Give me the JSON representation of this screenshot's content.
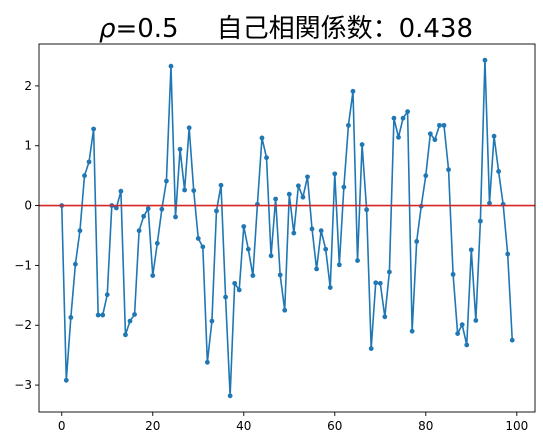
{
  "chart_data": {
    "type": "line",
    "title_parts": {
      "rho_symbol": "ρ",
      "rho_text": "=0.5",
      "autocorr_text": "自己相関係数：0.438"
    },
    "xlabel": "",
    "ylabel": "",
    "xlim": [
      -5,
      104
    ],
    "ylim": [
      -3.45,
      2.7
    ],
    "x_ticks": [
      0,
      20,
      40,
      60,
      80,
      100
    ],
    "y_ticks": [
      -3,
      -2,
      -1,
      0,
      1,
      2
    ],
    "grid": false,
    "series": [
      {
        "color": "#1f77b4",
        "marker": "circle",
        "x": [
          0,
          1,
          2,
          3,
          4,
          5,
          6,
          7,
          8,
          9,
          10,
          11,
          12,
          13,
          14,
          15,
          16,
          17,
          18,
          19,
          20,
          21,
          22,
          23,
          24,
          25,
          26,
          27,
          28,
          29,
          30,
          31,
          32,
          33,
          34,
          35,
          36,
          37,
          38,
          39,
          40,
          41,
          42,
          43,
          44,
          45,
          46,
          47,
          48,
          49,
          50,
          51,
          52,
          53,
          54,
          55,
          56,
          57,
          58,
          59,
          60,
          61,
          62,
          63,
          64,
          65,
          66,
          67,
          68,
          69,
          70,
          71,
          72,
          73,
          74,
          75,
          76,
          77,
          78,
          79,
          80,
          81,
          82,
          83,
          84,
          85,
          86,
          87,
          88,
          89,
          90,
          91,
          92,
          93,
          94,
          95,
          96,
          97,
          98,
          99
        ],
        "y": [
          0.0,
          -2.92,
          -1.87,
          -0.98,
          -0.42,
          0.5,
          0.73,
          1.28,
          -1.83,
          -1.83,
          -1.49,
          0.0,
          -0.04,
          0.24,
          -2.16,
          -1.93,
          -1.82,
          -0.42,
          -0.18,
          -0.05,
          -1.17,
          -0.63,
          -0.06,
          0.41,
          2.33,
          -0.19,
          0.94,
          0.26,
          1.3,
          0.25,
          -0.55,
          -0.69,
          -2.62,
          -1.93,
          -0.09,
          0.34,
          -1.53,
          -3.18,
          -1.3,
          -1.41,
          -0.35,
          -0.73,
          -1.17,
          0.02,
          1.13,
          0.8,
          -0.84,
          0.11,
          -1.16,
          -1.75,
          0.19,
          -0.46,
          0.33,
          0.14,
          0.48,
          -0.39,
          -1.06,
          -0.42,
          -0.73,
          -1.37,
          0.53,
          -0.99,
          0.31,
          1.34,
          1.91,
          -0.92,
          1.02,
          -0.07,
          -2.39,
          -1.29,
          -1.3,
          -1.86,
          -1.11,
          1.46,
          1.14,
          1.46,
          1.57,
          -2.1,
          -0.6,
          -0.01,
          0.5,
          1.2,
          1.1,
          1.34,
          1.34,
          0.6,
          -1.15,
          -2.14,
          -1.99,
          -2.33,
          -0.74,
          -1.92,
          -0.26,
          2.43,
          0.04,
          1.16,
          0.57,
          0.02,
          -0.81,
          -2.25
        ]
      }
    ],
    "reference_line": {
      "y": 0,
      "color": "#d62728"
    }
  }
}
